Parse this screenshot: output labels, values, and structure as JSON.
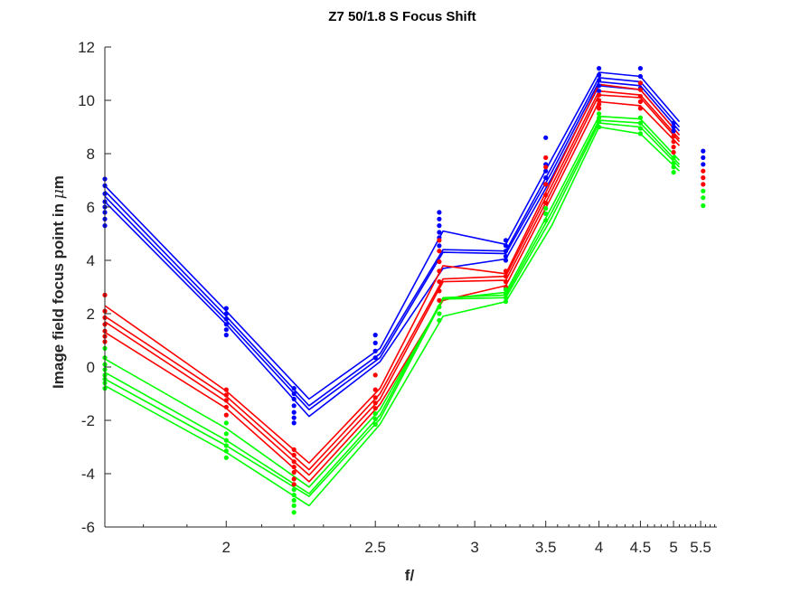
{
  "chart_data": {
    "type": "line",
    "title": "Z7 50/1.8 S Focus Shift",
    "xlabel": "f/",
    "ylabel_parts": [
      "Image field focus point in ",
      "μ",
      "m"
    ],
    "xscale": "reciprocal",
    "xlim": [
      1.72,
      5.85
    ],
    "ylim": [
      -6,
      12
    ],
    "x_ticks": [
      2,
      2.5,
      3,
      3.5,
      4,
      4.5,
      5,
      5.5
    ],
    "x_tick_labels": [
      "2",
      "2.5",
      "3",
      "3.5",
      "4",
      "4.5",
      "5",
      "5.5"
    ],
    "y_ticks": [
      -6,
      -4,
      -2,
      0,
      2,
      4,
      6,
      8,
      10,
      12
    ],
    "y_tick_labels": [
      "-6",
      "-4",
      "-2",
      "0",
      "2",
      "4",
      "6",
      "8",
      "10",
      "12"
    ],
    "grid": false,
    "colors": {
      "blue": "#0000ff",
      "red": "#ff0000",
      "green": "#00ff00",
      "axis": "#262626"
    },
    "series": [
      {
        "color": "blue",
        "x": [
          1.72,
          2.0,
          2.25,
          2.52,
          2.82,
          3.2,
          3.55,
          4.0,
          4.5,
          5.1
        ],
        "y": [
          6.8,
          2.1,
          -1.2,
          0.7,
          5.1,
          4.6,
          7.8,
          11.05,
          10.9,
          9.2
        ]
      },
      {
        "color": "blue",
        "x": [
          1.72,
          2.0,
          2.25,
          2.52,
          2.82,
          3.2,
          3.55,
          4.0,
          4.5,
          5.1
        ],
        "y": [
          6.6,
          1.9,
          -1.45,
          0.5,
          4.4,
          4.35,
          7.5,
          10.85,
          10.7,
          9.0
        ]
      },
      {
        "color": "blue",
        "x": [
          1.72,
          2.0,
          2.25,
          2.52,
          2.82,
          3.2,
          3.55,
          4.0,
          4.5,
          5.1
        ],
        "y": [
          6.4,
          1.75,
          -1.6,
          0.35,
          4.3,
          4.25,
          7.3,
          10.7,
          10.55,
          8.85
        ]
      },
      {
        "color": "blue",
        "x": [
          1.72,
          2.0,
          2.25,
          2.52,
          2.82,
          3.2,
          3.55,
          4.0,
          4.5,
          5.1
        ],
        "y": [
          6.2,
          1.6,
          -1.85,
          0.2,
          3.7,
          4.05,
          7.1,
          10.55,
          10.4,
          8.7
        ]
      },
      {
        "color": "red",
        "x": [
          1.72,
          2.0,
          2.25,
          2.52,
          2.82,
          3.2,
          3.55,
          4.0,
          4.5,
          5.1
        ],
        "y": [
          2.3,
          -0.9,
          -3.6,
          -0.8,
          3.8,
          3.5,
          7.0,
          10.6,
          10.4,
          8.7
        ]
      },
      {
        "color": "red",
        "x": [
          1.72,
          2.0,
          2.25,
          2.52,
          2.82,
          3.2,
          3.55,
          4.0,
          4.5,
          5.1
        ],
        "y": [
          1.9,
          -1.1,
          -3.85,
          -1.0,
          3.3,
          3.4,
          6.8,
          10.35,
          10.2,
          8.55
        ]
      },
      {
        "color": "red",
        "x": [
          1.72,
          2.0,
          2.25,
          2.52,
          2.82,
          3.2,
          3.55,
          4.0,
          4.5,
          5.1
        ],
        "y": [
          1.7,
          -1.3,
          -4.05,
          -1.2,
          3.2,
          3.25,
          6.6,
          10.2,
          10.1,
          8.45
        ]
      },
      {
        "color": "red",
        "x": [
          1.72,
          2.0,
          2.25,
          2.52,
          2.82,
          3.2,
          3.55,
          4.0,
          4.5,
          5.1
        ],
        "y": [
          1.3,
          -1.55,
          -4.3,
          -1.4,
          2.5,
          3.05,
          6.4,
          9.95,
          9.8,
          8.3
        ]
      },
      {
        "color": "green",
        "x": [
          1.72,
          2.0,
          2.25,
          2.52,
          2.82,
          3.2,
          3.55,
          4.0,
          4.5,
          5.1
        ],
        "y": [
          0.3,
          -2.3,
          -4.5,
          -1.6,
          2.55,
          2.8,
          6.0,
          9.4,
          9.3,
          7.75
        ]
      },
      {
        "color": "green",
        "x": [
          1.72,
          2.0,
          2.25,
          2.52,
          2.82,
          3.2,
          3.55,
          4.0,
          4.5,
          5.1
        ],
        "y": [
          -0.2,
          -2.75,
          -4.75,
          -1.8,
          2.6,
          2.7,
          5.8,
          9.25,
          9.15,
          7.6
        ]
      },
      {
        "color": "green",
        "x": [
          1.72,
          2.0,
          2.25,
          2.52,
          2.82,
          3.2,
          3.55,
          4.0,
          4.5,
          5.1
        ],
        "y": [
          -0.45,
          -2.95,
          -4.85,
          -1.95,
          2.55,
          2.6,
          5.6,
          9.15,
          9.0,
          7.5
        ]
      },
      {
        "color": "green",
        "x": [
          1.72,
          2.0,
          2.25,
          2.52,
          2.82,
          3.2,
          3.55,
          4.0,
          4.5,
          5.1
        ],
        "y": [
          -0.7,
          -3.2,
          -5.2,
          -2.15,
          1.9,
          2.45,
          5.3,
          9.0,
          8.75,
          7.35
        ]
      }
    ],
    "points": [
      {
        "x": 1.72,
        "blue": [
          7.05,
          6.8,
          6.5,
          6.2,
          6.0,
          5.8,
          5.55,
          5.3
        ],
        "red": [
          2.7,
          2.1,
          1.85,
          1.6,
          1.35,
          1.15,
          0.95
        ],
        "green": [
          0.7,
          0.35,
          0.1,
          -0.1,
          -0.3,
          -0.45,
          -0.6,
          -0.8
        ]
      },
      {
        "x": 2.0,
        "blue": [
          2.2,
          2.0,
          1.8,
          1.6,
          1.4,
          1.2
        ],
        "red": [
          -0.85,
          -1.05,
          -1.25,
          -1.5,
          -1.8
        ],
        "green": [
          -2.1,
          -2.5,
          -2.75,
          -2.95,
          -3.15,
          -3.4
        ]
      },
      {
        "x": 2.2,
        "blue": [
          -0.8,
          -1.0,
          -1.2,
          -1.45,
          -1.7,
          -1.9,
          -2.1
        ],
        "red": [
          -3.1,
          -3.3,
          -3.55,
          -3.75,
          -3.95,
          -4.2,
          -4.4
        ],
        "green": [
          -4.6,
          -4.8,
          -5.0,
          -5.2,
          -5.45
        ]
      },
      {
        "x": 2.5,
        "blue": [
          1.2,
          0.9,
          0.6,
          0.35
        ],
        "red": [
          -0.3,
          -0.85,
          -1.15,
          -1.35,
          -1.55
        ],
        "green": [
          -1.75,
          -1.95,
          -2.15
        ]
      },
      {
        "x": 2.8,
        "blue": [
          5.8,
          5.55,
          5.3,
          5.05,
          4.85,
          4.55
        ],
        "red": [
          4.75,
          4.35,
          3.95,
          3.6,
          3.2,
          2.85,
          2.5
        ],
        "green": [
          2.25,
          2.0,
          1.75
        ]
      },
      {
        "x": 3.2,
        "blue": [
          4.75,
          4.55,
          4.35,
          4.15,
          4.0
        ],
        "red": [
          3.6,
          3.4,
          3.2,
          3.0
        ],
        "green": [
          2.9,
          2.75,
          2.6,
          2.45
        ]
      },
      {
        "x": 3.5,
        "blue": [
          8.6,
          7.6,
          7.35,
          7.1,
          6.85
        ],
        "red": [
          7.85,
          7.5,
          6.85,
          6.45,
          6.15
        ],
        "green": [
          5.95,
          5.75,
          5.5
        ]
      },
      {
        "x": 4.0,
        "blue": [
          11.2,
          10.95,
          10.75,
          10.55,
          10.35
        ],
        "red": [
          10.2,
          10.0,
          9.85,
          9.7
        ],
        "green": [
          9.5,
          9.35,
          9.2,
          9.0
        ]
      },
      {
        "x": 4.5,
        "blue": [
          11.2,
          10.9,
          10.65,
          10.45
        ],
        "red": [
          10.65,
          10.4,
          10.15,
          9.95,
          9.7
        ],
        "green": [
          9.35,
          9.15,
          8.95,
          8.75
        ]
      },
      {
        "x": 5.0,
        "blue": [
          9.15,
          9.0,
          8.85
        ],
        "red": [
          8.65,
          8.45,
          8.25,
          8.05
        ],
        "green": [
          7.85,
          7.65,
          7.5,
          7.3
        ]
      },
      {
        "x": 5.55,
        "blue": [
          8.1,
          7.85,
          7.6
        ],
        "red": [
          7.35,
          7.1,
          6.85
        ],
        "green": [
          6.6,
          6.35,
          6.05
        ]
      }
    ]
  }
}
